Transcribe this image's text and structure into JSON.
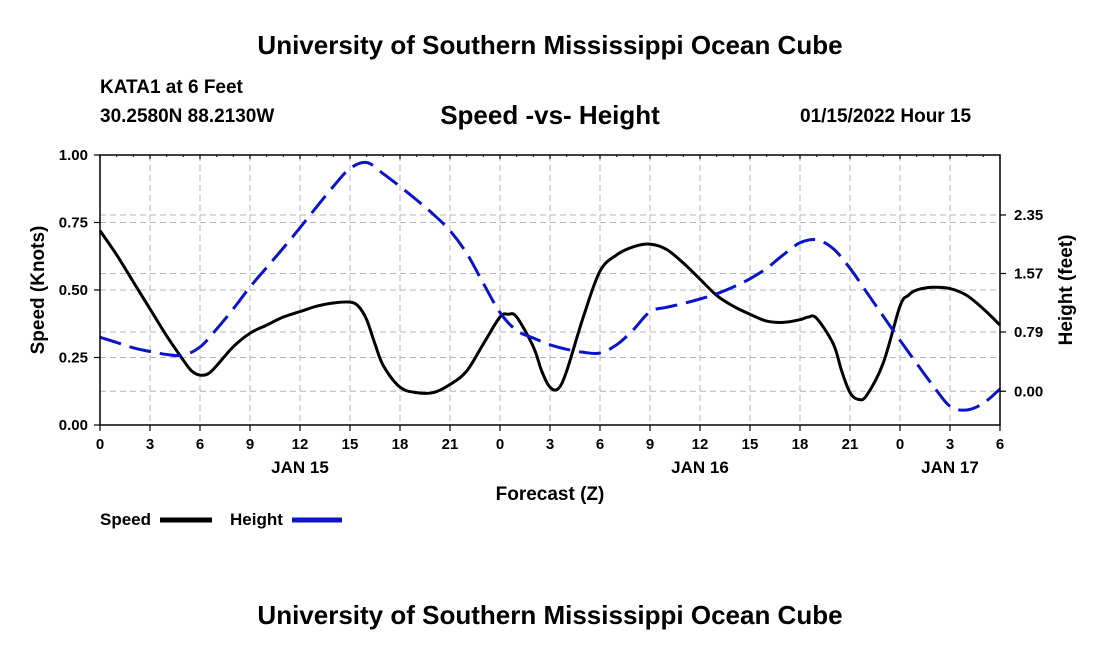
{
  "header": {
    "title": "University of Southern Mississippi Ocean Cube",
    "station": "KATA1 at 6 Feet",
    "location": "30.2580N  88.2130W",
    "subtitle": "Speed -vs- Height",
    "datetime": "01/15/2022 Hour 15"
  },
  "footer": {
    "title": "University of Southern Mississippi Ocean Cube"
  },
  "colors": {
    "speed": "#000000",
    "height": "#0a14c8",
    "grid": "#b4b4b4"
  },
  "chart_data": {
    "type": "line",
    "xlabel": "Forecast (Z)",
    "ylabel_left": "Speed (Knots)",
    "ylabel_right": "Height (feet)",
    "xlim": [
      0,
      54
    ],
    "ylim_left": [
      0,
      1
    ],
    "ylim_right": [
      -0.45,
      3.15
    ],
    "x_ticks": [
      0,
      3,
      6,
      9,
      12,
      15,
      18,
      21,
      24,
      27,
      30,
      33,
      36,
      39,
      42,
      45,
      48,
      51,
      54
    ],
    "x_tick_labels": [
      "0",
      "3",
      "6",
      "9",
      "12",
      "15",
      "18",
      "21",
      "0",
      "3",
      "6",
      "9",
      "12",
      "15",
      "18",
      "21",
      "0",
      "3",
      "6"
    ],
    "y_left_ticks": [
      0,
      0.25,
      0.5,
      0.75,
      1.0
    ],
    "y_left_tick_labels": [
      "0.00",
      "0.25",
      "0.50",
      "0.75",
      "1.00"
    ],
    "y_right_ticks": [
      0,
      0.79,
      1.57,
      2.35
    ],
    "y_right_tick_labels": [
      "0.00",
      "0.79",
      "1.57",
      "2.35"
    ],
    "date_labels": [
      {
        "x": 12,
        "label": "JAN 15"
      },
      {
        "x": 36,
        "label": "JAN 16"
      },
      {
        "x": 51,
        "label": "JAN 17"
      }
    ],
    "grid": true,
    "legend": {
      "position": "bottom-left",
      "entries": [
        "Speed",
        "Height"
      ]
    },
    "series": [
      {
        "name": "Speed",
        "axis": "left",
        "style": "solid",
        "x": [
          0,
          1,
          2,
          3,
          4,
          5,
          5.5,
          6,
          6.5,
          7,
          8,
          9,
          10,
          11,
          12,
          13,
          14,
          15,
          15.5,
          16,
          16.5,
          17,
          18,
          19,
          20,
          21,
          22,
          23,
          24,
          24.5,
          25,
          26,
          26.5,
          27,
          27.5,
          28,
          29,
          30,
          31,
          32,
          33,
          34,
          35,
          36,
          37,
          38,
          39,
          40,
          41,
          42,
          42.5,
          43,
          44,
          44.5,
          45,
          45.5,
          46,
          47,
          48,
          48.5,
          49,
          50,
          51,
          52,
          53,
          54
        ],
        "values": [
          0.72,
          0.63,
          0.53,
          0.43,
          0.33,
          0.24,
          0.2,
          0.185,
          0.19,
          0.22,
          0.29,
          0.34,
          0.37,
          0.4,
          0.42,
          0.44,
          0.452,
          0.455,
          0.44,
          0.39,
          0.3,
          0.22,
          0.14,
          0.12,
          0.12,
          0.15,
          0.2,
          0.3,
          0.4,
          0.41,
          0.4,
          0.29,
          0.2,
          0.14,
          0.135,
          0.2,
          0.4,
          0.57,
          0.63,
          0.66,
          0.67,
          0.65,
          0.6,
          0.54,
          0.48,
          0.44,
          0.41,
          0.385,
          0.38,
          0.39,
          0.4,
          0.395,
          0.3,
          0.2,
          0.12,
          0.095,
          0.11,
          0.23,
          0.44,
          0.48,
          0.5,
          0.51,
          0.505,
          0.48,
          0.43,
          0.37
        ]
      },
      {
        "name": "Height",
        "axis": "right",
        "style": "dashed",
        "x": [
          0,
          1,
          2,
          3,
          4,
          5,
          6,
          7,
          8,
          9,
          10,
          11,
          12,
          13,
          14,
          15,
          16,
          17,
          18,
          19,
          20,
          21,
          22,
          23,
          24,
          25,
          26,
          27,
          28,
          29,
          30,
          31,
          32,
          33,
          34,
          35,
          36,
          37,
          38,
          39,
          40,
          41,
          42,
          43,
          44,
          45,
          46,
          47,
          48,
          49,
          50,
          51,
          52,
          53,
          54
        ],
        "values": [
          0.72,
          0.65,
          0.58,
          0.53,
          0.49,
          0.48,
          0.59,
          0.83,
          1.1,
          1.39,
          1.65,
          1.91,
          2.18,
          2.46,
          2.73,
          2.97,
          3.05,
          2.9,
          2.73,
          2.55,
          2.36,
          2.14,
          1.84,
          1.44,
          1.05,
          0.81,
          0.71,
          0.62,
          0.56,
          0.52,
          0.51,
          0.62,
          0.82,
          1.06,
          1.12,
          1.17,
          1.23,
          1.3,
          1.39,
          1.5,
          1.64,
          1.82,
          1.98,
          2.02,
          1.9,
          1.64,
          1.32,
          1.0,
          0.68,
          0.37,
          0.07,
          -0.2,
          -0.25,
          -0.16,
          0.03
        ]
      }
    ]
  }
}
